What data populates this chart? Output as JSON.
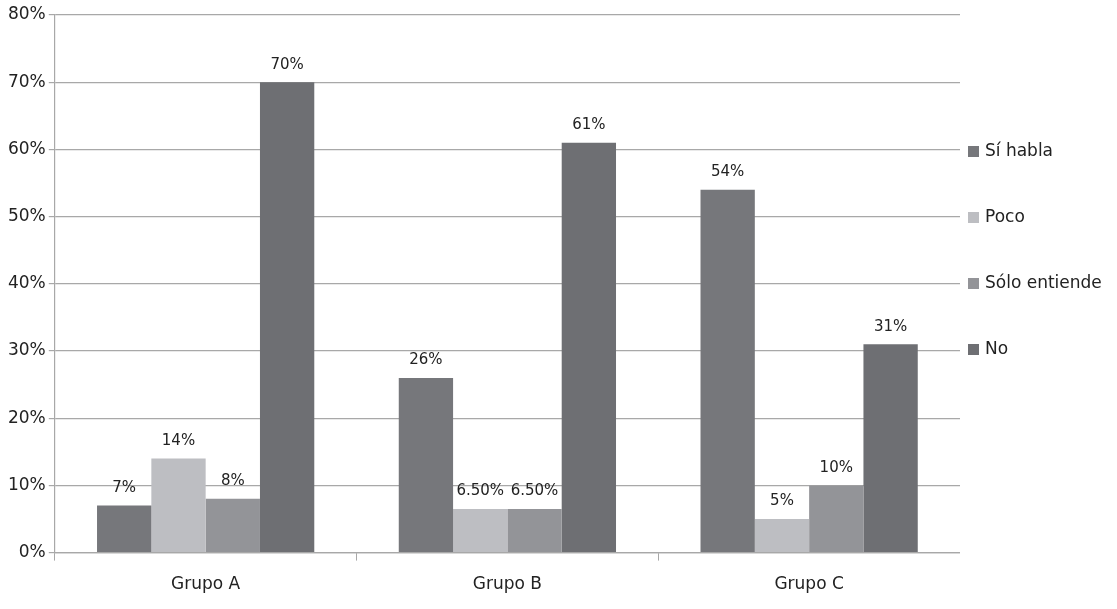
{
  "chart_data": {
    "type": "bar",
    "categories": [
      "Grupo A",
      "Grupo B",
      "Grupo C"
    ],
    "series": [
      {
        "name": "Sí habla",
        "color": "#76777b",
        "values": [
          7,
          26,
          54
        ],
        "value_labels": [
          "7%",
          "26%",
          "54%"
        ]
      },
      {
        "name": "Poco",
        "color": "#bdbec2",
        "values": [
          14,
          6.5,
          5
        ],
        "value_labels": [
          "14%",
          "6.50%",
          "5%"
        ]
      },
      {
        "name": "Sólo entiende",
        "color": "#939498",
        "values": [
          8,
          6.5,
          10
        ],
        "value_labels": [
          "8%",
          "6.50%",
          "10%"
        ]
      },
      {
        "name": "No",
        "color": "#6e6f73",
        "values": [
          70,
          61,
          31
        ],
        "value_labels": [
          "70%",
          "61%",
          "31%"
        ]
      }
    ],
    "ylim": [
      0,
      80
    ],
    "yticks": [
      {
        "value": 0,
        "label": "0%"
      },
      {
        "value": 10,
        "label": "10%"
      },
      {
        "value": 20,
        "label": "20%"
      },
      {
        "value": 30,
        "label": "30%"
      },
      {
        "value": 40,
        "label": "40%"
      },
      {
        "value": 50,
        "label": "50%"
      },
      {
        "value": 60,
        "label": "60%"
      },
      {
        "value": 70,
        "label": "70%"
      },
      {
        "value": 80,
        "label": "80%"
      }
    ],
    "grid": "y",
    "legend": "right"
  }
}
